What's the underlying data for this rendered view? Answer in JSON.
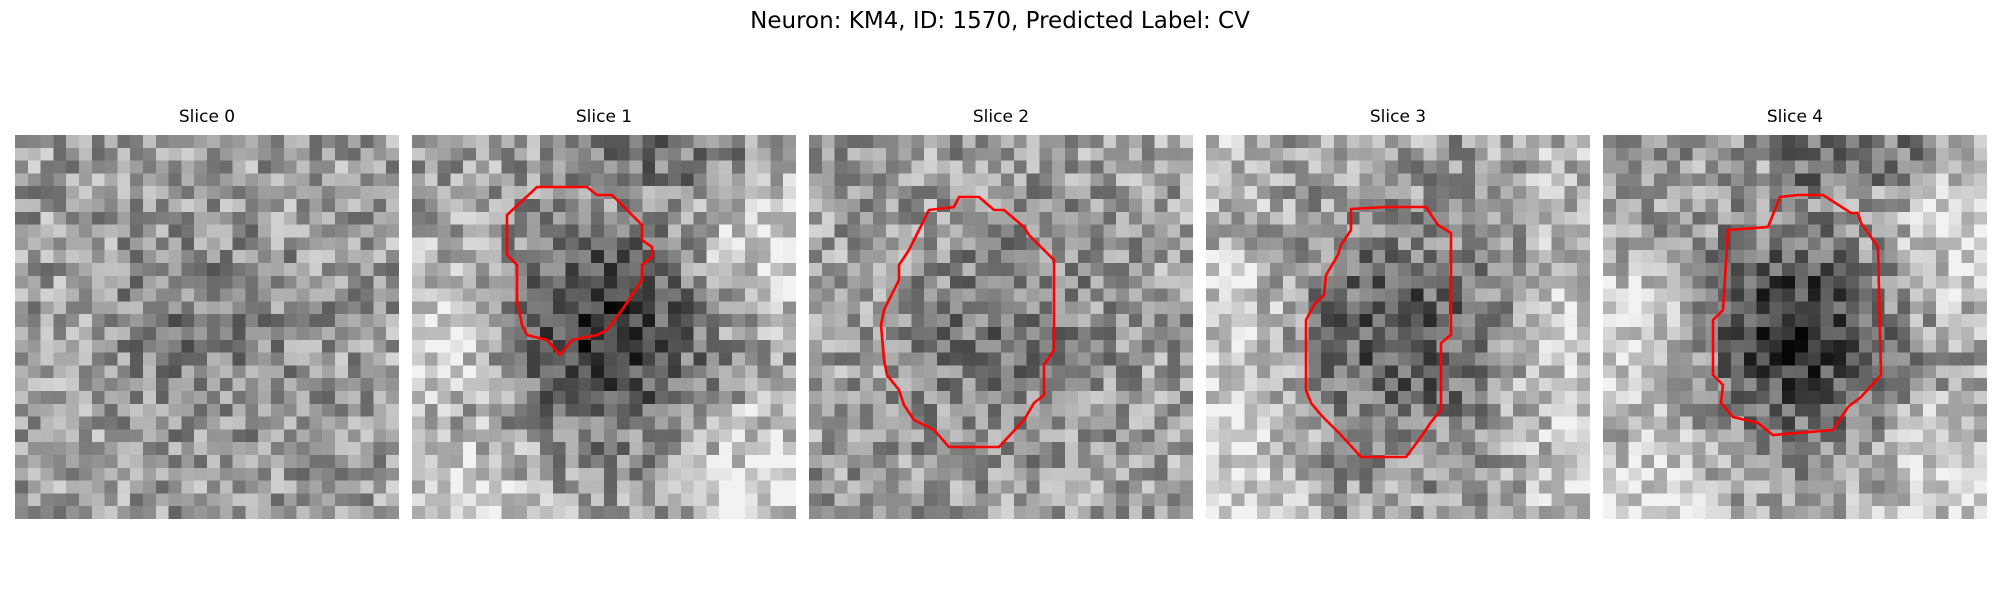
{
  "figure": {
    "title": "Neuron: KM4, ID: 1570, Predicted Label: CV"
  },
  "style": {
    "contour_color": "#ff0000"
  },
  "panels": [
    {
      "title": "Slice 0",
      "contour": false,
      "cell_strength": 0.25,
      "background": "noise-mid",
      "seed": 11
    },
    {
      "title": "Slice 1",
      "contour": true,
      "cell_strength": 0.8,
      "background": "bright-corners",
      "seed": 23
    },
    {
      "title": "Slice 2",
      "contour": true,
      "cell_strength": 0.3,
      "background": "noise-mid",
      "seed": 37
    },
    {
      "title": "Slice 3",
      "contour": true,
      "cell_strength": 0.55,
      "background": "bright-left",
      "seed": 41
    },
    {
      "title": "Slice 4",
      "contour": true,
      "cell_strength": 0.8,
      "background": "bright-corners",
      "seed": 53
    }
  ]
}
